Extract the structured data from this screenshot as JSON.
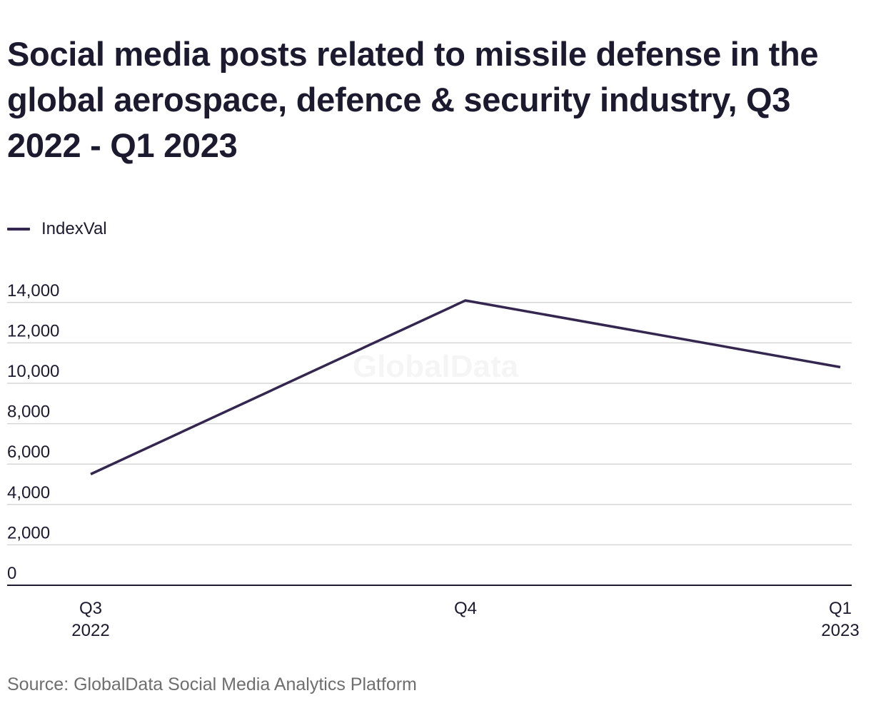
{
  "title": "Social media posts related to missile defense in the global aerospace, defence & security industry, Q3 2022 - Q1 2023",
  "source": "Source: GlobalData Social Media Analytics Platform",
  "watermark": "GlobalData",
  "colors": {
    "series": "#33264f",
    "grid": "#d6d6d6",
    "axis": "#1b1a2e",
    "text": "#1b1a2e",
    "source": "#6e6e6e"
  },
  "chart_data": {
    "type": "line",
    "title": "Social media posts related to missile defense in the global aerospace, defence & security industry, Q3 2022 - Q1 2023",
    "categories": [
      [
        "Q3",
        "2022"
      ],
      [
        "Q4"
      ],
      [
        "Q1",
        "2023"
      ]
    ],
    "series": [
      {
        "name": "IndexVal",
        "values": [
          5500,
          14100,
          10800
        ]
      }
    ],
    "yticks": [
      0,
      2000,
      4000,
      6000,
      8000,
      10000,
      12000,
      14000
    ],
    "ytick_labels": [
      "0",
      "2,000",
      "4,000",
      "6,000",
      "8,000",
      "10,000",
      "12,000",
      "14,000"
    ],
    "ylim": [
      0,
      14000
    ],
    "xlabel": "",
    "ylabel": "",
    "grid": true,
    "legend": "top-left"
  }
}
